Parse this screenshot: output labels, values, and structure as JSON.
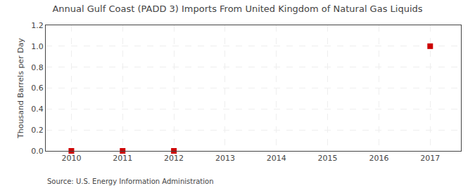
{
  "chart_data": {
    "type": "scatter",
    "title": "Annual Gulf Coast (PADD 3) Imports From United Kingdom of Natural Gas Liquids",
    "ylabel": "Thousand Barrels per Day",
    "annotations": [
      "Source: U.S. Energy Information Administration"
    ],
    "x": [
      2010,
      2011,
      2012,
      2017
    ],
    "values": [
      0.0,
      0.0,
      0.0,
      1.0
    ],
    "color": "#cc0000",
    "marker": "square",
    "xlim": [
      2009.5,
      2017.6
    ],
    "xticks": [
      2010,
      2011,
      2012,
      2013,
      2014,
      2015,
      2016,
      2017
    ],
    "ylim": [
      0.0,
      1.2
    ],
    "yticks": [
      {
        "value": 0.0,
        "label": "0.0"
      },
      {
        "value": 0.2,
        "label": "0.2"
      },
      {
        "value": 0.4,
        "label": "0.4"
      },
      {
        "value": 0.6,
        "label": "0.6"
      },
      {
        "value": 0.8,
        "label": "0.8"
      },
      {
        "value": 1.0,
        "label": "1.0"
      },
      {
        "value": 1.2,
        "label": "1.2"
      }
    ],
    "grid": true
  }
}
